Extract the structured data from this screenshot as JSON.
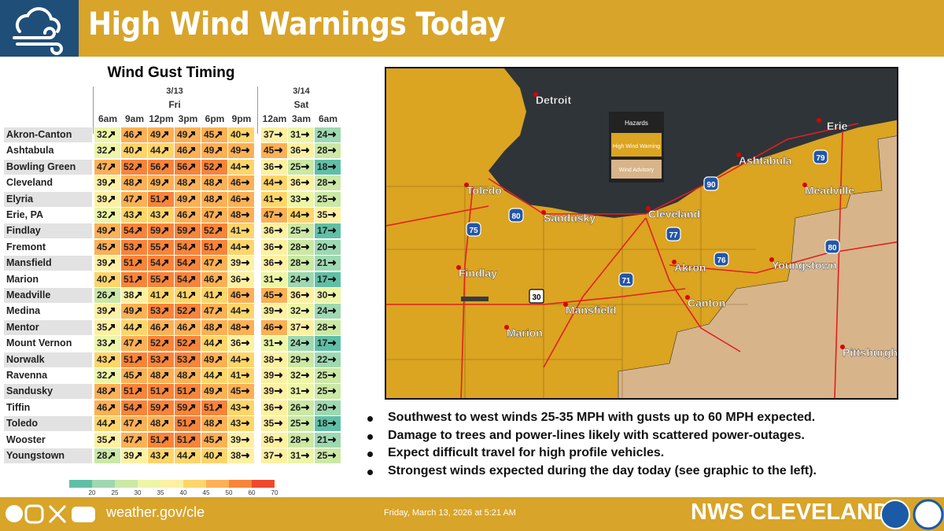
{
  "header": {
    "title": "High Wind Warnings Today"
  },
  "table": {
    "title": "Wind Gust Timing",
    "dates": [
      {
        "date": "3/13",
        "day": "Fri"
      },
      {
        "date": "3/14",
        "day": "Sat"
      }
    ],
    "times": [
      "6am",
      "9am",
      "12pm",
      "3pm",
      "6pm",
      "9pm",
      "12am",
      "3am",
      "6am"
    ],
    "rows": [
      {
        "location": "Akron-Canton",
        "gusts": [
          32,
          46,
          49,
          49,
          45,
          40,
          37,
          31,
          24
        ]
      },
      {
        "location": "Ashtabula",
        "gusts": [
          32,
          40,
          44,
          46,
          49,
          49,
          45,
          36,
          28
        ]
      },
      {
        "location": "Bowling Green",
        "gusts": [
          47,
          52,
          56,
          56,
          52,
          44,
          36,
          25,
          18
        ]
      },
      {
        "location": "Cleveland",
        "gusts": [
          39,
          48,
          49,
          48,
          48,
          46,
          44,
          36,
          28
        ]
      },
      {
        "location": "Elyria",
        "gusts": [
          39,
          47,
          51,
          49,
          48,
          46,
          41,
          33,
          25
        ]
      },
      {
        "location": "Erie, PA",
        "gusts": [
          32,
          43,
          43,
          46,
          47,
          48,
          47,
          44,
          35
        ]
      },
      {
        "location": "Findlay",
        "gusts": [
          49,
          54,
          59,
          59,
          52,
          41,
          36,
          25,
          17
        ]
      },
      {
        "location": "Fremont",
        "gusts": [
          45,
          53,
          55,
          54,
          51,
          44,
          36,
          28,
          20
        ]
      },
      {
        "location": "Mansfield",
        "gusts": [
          39,
          51,
          54,
          54,
          47,
          39,
          36,
          28,
          21
        ]
      },
      {
        "location": "Marion",
        "gusts": [
          40,
          51,
          55,
          54,
          46,
          36,
          31,
          24,
          17
        ]
      },
      {
        "location": "Meadville",
        "gusts": [
          26,
          38,
          41,
          41,
          41,
          46,
          45,
          36,
          30
        ]
      },
      {
        "location": "Medina",
        "gusts": [
          39,
          49,
          53,
          52,
          47,
          44,
          39,
          32,
          24
        ]
      },
      {
        "location": "Mentor",
        "gusts": [
          35,
          44,
          46,
          46,
          48,
          48,
          46,
          37,
          28
        ]
      },
      {
        "location": "Mount Vernon",
        "gusts": [
          33,
          47,
          52,
          52,
          44,
          36,
          31,
          24,
          17
        ]
      },
      {
        "location": "Norwalk",
        "gusts": [
          43,
          51,
          53,
          53,
          49,
          44,
          38,
          29,
          22
        ]
      },
      {
        "location": "Ravenna",
        "gusts": [
          32,
          45,
          48,
          48,
          44,
          41,
          39,
          32,
          25
        ]
      },
      {
        "location": "Sandusky",
        "gusts": [
          48,
          51,
          51,
          51,
          49,
          45,
          39,
          31,
          25
        ]
      },
      {
        "location": "Tiffin",
        "gusts": [
          46,
          54,
          59,
          59,
          51,
          43,
          36,
          26,
          20
        ]
      },
      {
        "location": "Toledo",
        "gusts": [
          44,
          47,
          48,
          51,
          48,
          43,
          35,
          25,
          18
        ]
      },
      {
        "location": "Wooster",
        "gusts": [
          35,
          47,
          51,
          51,
          45,
          39,
          36,
          28,
          21
        ]
      },
      {
        "location": "Youngstown",
        "gusts": [
          28,
          39,
          43,
          44,
          40,
          38,
          37,
          31,
          25
        ]
      }
    ],
    "legend": [
      20,
      25,
      30,
      35,
      40,
      45,
      50,
      60,
      70
    ]
  },
  "map": {
    "cities": [
      "Detroit",
      "Toledo",
      "Sandusky",
      "Cleveland",
      "Erie",
      "Ashtabula",
      "Meadville",
      "Findlay",
      "Akron",
      "Youngstown",
      "Mansfield",
      "Canton",
      "Marion",
      "Pittsburgh"
    ],
    "routes": [
      "75",
      "80",
      "90",
      "79",
      "77",
      "76",
      "71",
      "30",
      "80"
    ],
    "legend": {
      "title": "Hazards",
      "items": [
        "High Wind Warning",
        "Wind Advisory"
      ]
    }
  },
  "bullets": [
    "Southwest to west winds 25-35 MPH with gusts up to 60 MPH expected.",
    "Damage to trees and power-lines likely with scattered power-outages.",
    "Expect difficult travel for high profile vehicles.",
    "Strongest winds expected during the day today (see graphic to the left)."
  ],
  "footer": {
    "url": "weather.gov/cle",
    "timestamp": "Friday, March 13, 2026 at 5:21 AM",
    "office": "NWS CLEVELAND"
  }
}
